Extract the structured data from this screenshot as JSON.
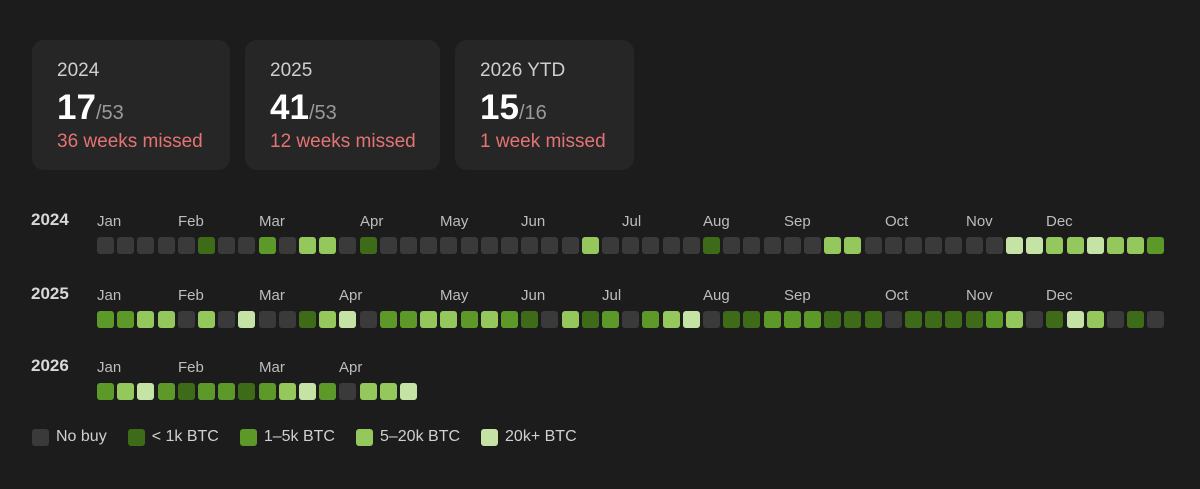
{
  "cards": [
    {
      "year": "2024",
      "bought": "17",
      "total": "/53",
      "missed": "36 weeks missed"
    },
    {
      "year": "2025",
      "bought": "41",
      "total": "/53",
      "missed": "12 weeks missed"
    },
    {
      "year": "2026 YTD",
      "bought": "15",
      "total": "/16",
      "missed": "1 week missed"
    }
  ],
  "colors": {
    "0": "#3a3a3a",
    "1": "#3d6b17",
    "2": "#5d9929",
    "3": "#94c85c",
    "4": "#c6e3a6",
    "missed_text": "#e57373"
  },
  "legend": [
    {
      "label": "No buy",
      "level": 0
    },
    {
      "label": "< 1k BTC",
      "level": 1
    },
    {
      "label": "1–5k BTC",
      "level": 2
    },
    {
      "label": "5–20k BTC",
      "level": 3
    },
    {
      "label": "20k+ BTC",
      "level": 4
    }
  ],
  "chart_data": {
    "type": "heatmap",
    "x_unit": "week",
    "levels": [
      "No buy",
      "< 1k BTC",
      "1–5k BTC",
      "5–20k BTC",
      "20k+ BTC"
    ],
    "rows": [
      {
        "year": "2024",
        "months": [
          {
            "label": "Jan",
            "week": 0
          },
          {
            "label": "Feb",
            "week": 4
          },
          {
            "label": "Mar",
            "week": 8
          },
          {
            "label": "Apr",
            "week": 13
          },
          {
            "label": "May",
            "week": 17
          },
          {
            "label": "Jun",
            "week": 21
          },
          {
            "label": "Jul",
            "week": 26
          },
          {
            "label": "Aug",
            "week": 30
          },
          {
            "label": "Sep",
            "week": 34
          },
          {
            "label": "Oct",
            "week": 39
          },
          {
            "label": "Nov",
            "week": 43
          },
          {
            "label": "Dec",
            "week": 47
          }
        ],
        "weeks": [
          0,
          0,
          0,
          0,
          0,
          1,
          0,
          0,
          2,
          0,
          3,
          3,
          0,
          1,
          0,
          0,
          0,
          0,
          0,
          0,
          0,
          0,
          0,
          0,
          3,
          0,
          0,
          0,
          0,
          0,
          1,
          0,
          0,
          0,
          0,
          0,
          3,
          3,
          0,
          0,
          0,
          0,
          0,
          0,
          0,
          4,
          4,
          3,
          3,
          4,
          3,
          3,
          2
        ]
      },
      {
        "year": "2025",
        "months": [
          {
            "label": "Jan",
            "week": 0
          },
          {
            "label": "Feb",
            "week": 4
          },
          {
            "label": "Mar",
            "week": 8
          },
          {
            "label": "Apr",
            "week": 12
          },
          {
            "label": "May",
            "week": 17
          },
          {
            "label": "Jun",
            "week": 21
          },
          {
            "label": "Jul",
            "week": 25
          },
          {
            "label": "Aug",
            "week": 30
          },
          {
            "label": "Sep",
            "week": 34
          },
          {
            "label": "Oct",
            "week": 39
          },
          {
            "label": "Nov",
            "week": 43
          },
          {
            "label": "Dec",
            "week": 47
          }
        ],
        "weeks": [
          2,
          2,
          3,
          3,
          0,
          3,
          0,
          4,
          0,
          0,
          1,
          3,
          4,
          0,
          2,
          2,
          3,
          3,
          2,
          3,
          2,
          1,
          0,
          3,
          1,
          2,
          0,
          2,
          3,
          4,
          0,
          1,
          1,
          2,
          2,
          2,
          1,
          1,
          1,
          0,
          1,
          1,
          1,
          1,
          2,
          3,
          0,
          1,
          4,
          3,
          0,
          1,
          0
        ]
      },
      {
        "year": "2026",
        "months": [
          {
            "label": "Jan",
            "week": 0
          },
          {
            "label": "Feb",
            "week": 4
          },
          {
            "label": "Mar",
            "week": 8
          },
          {
            "label": "Apr",
            "week": 12
          }
        ],
        "weeks": [
          2,
          3,
          4,
          2,
          1,
          2,
          2,
          1,
          2,
          3,
          4,
          2,
          0,
          3,
          3,
          4
        ]
      }
    ]
  }
}
